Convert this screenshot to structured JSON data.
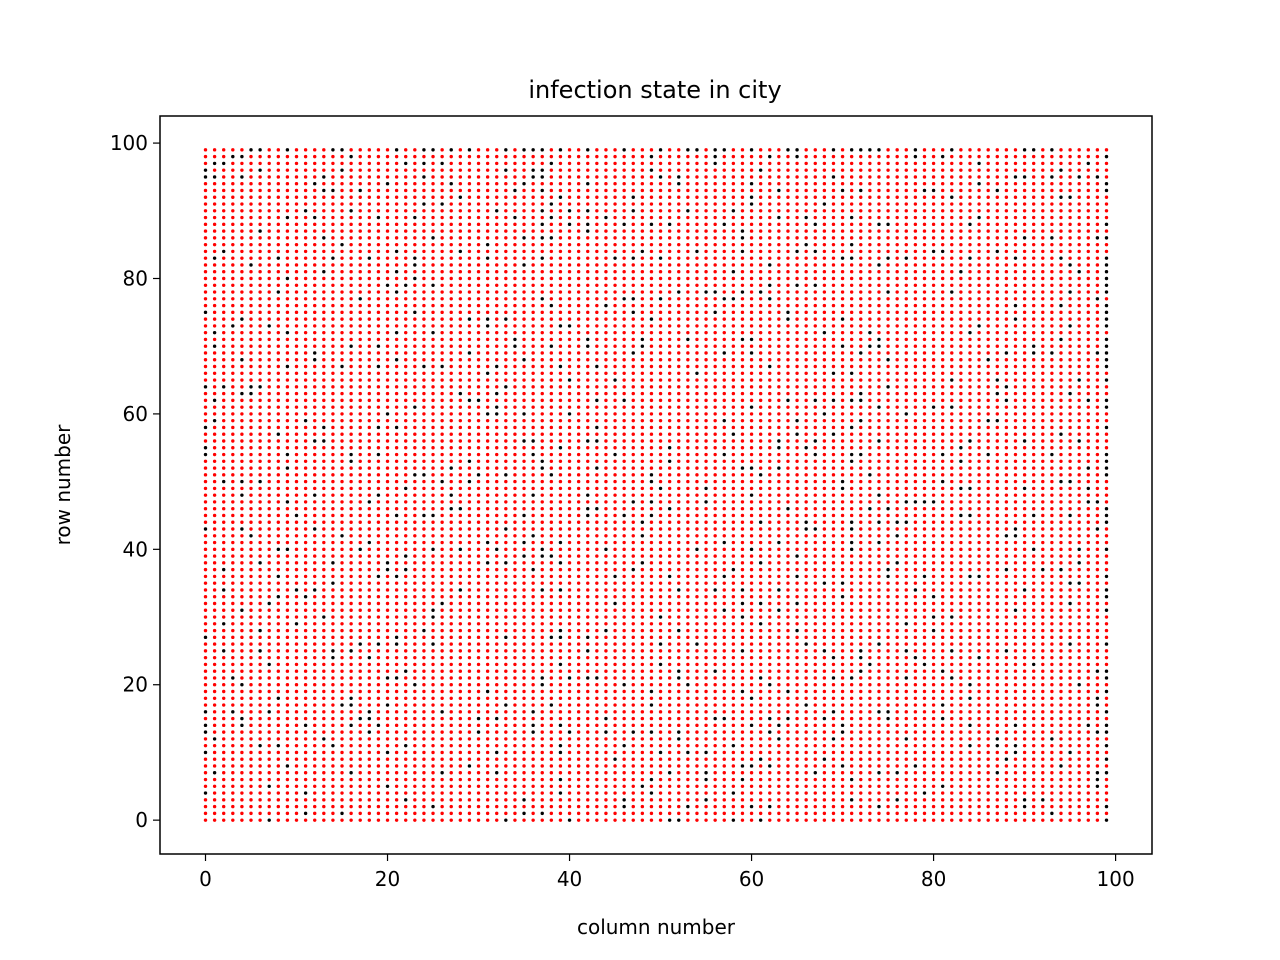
{
  "chart_data": {
    "type": "scatter",
    "title": "infection state in city",
    "xlabel": "column number",
    "ylabel": "row number",
    "xlim": [
      -5,
      104
    ],
    "ylim": [
      -5,
      104
    ],
    "xticks": [
      0,
      20,
      40,
      60,
      80,
      100
    ],
    "yticks": [
      0,
      20,
      40,
      60,
      80,
      100
    ],
    "grid": false,
    "legend": "none",
    "grid_size": {
      "columns": 100,
      "rows": 100
    },
    "x_values": "integers 0 to 99",
    "y_values": "integers 0 to 99",
    "series": [
      {
        "color": "#ff0000",
        "description": "majority of grid cells (about 90%)"
      },
      {
        "color": "#000000",
        "description": "scattered minority of grid cells (about 10%), denser along column 99 and row 99"
      }
    ],
    "colors": {
      "infected": "#ff0000",
      "other": "#000000",
      "axes": "#000000",
      "background": "#ffffff"
    }
  }
}
